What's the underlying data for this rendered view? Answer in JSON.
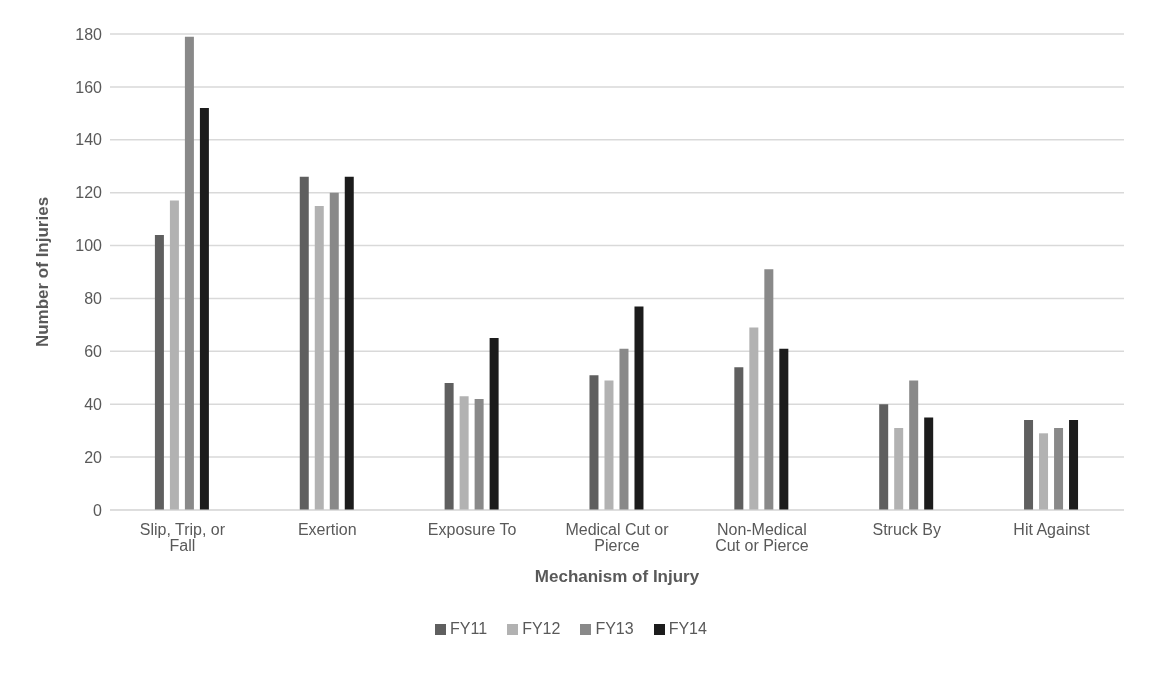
{
  "chart_data": {
    "type": "bar",
    "xlabel": "Mechanism of Injury",
    "ylabel": "Number of Injuries",
    "categories": [
      "Slip, Trip, or Fall",
      "Exertion",
      "Exposure To",
      "Medical Cut or Pierce",
      "Non-Medical Cut or Pierce",
      "Struck By",
      "Hit Against"
    ],
    "series": [
      {
        "name": "FY11",
        "color": "#5f5f5f",
        "values": [
          104,
          126,
          48,
          51,
          54,
          40,
          34
        ]
      },
      {
        "name": "FY12",
        "color": "#b2b2b2",
        "values": [
          117,
          115,
          43,
          49,
          69,
          31,
          29
        ]
      },
      {
        "name": "FY13",
        "color": "#898989",
        "values": [
          179,
          120,
          42,
          61,
          91,
          49,
          31
        ]
      },
      {
        "name": "FY14",
        "color": "#1c1c1c",
        "values": [
          152,
          126,
          65,
          77,
          61,
          35,
          34
        ]
      }
    ],
    "ylim": [
      0,
      180
    ],
    "yticks": [
      0,
      20,
      40,
      60,
      80,
      100,
      120,
      140,
      160,
      180
    ],
    "grid": "y",
    "legend": "bottom"
  }
}
